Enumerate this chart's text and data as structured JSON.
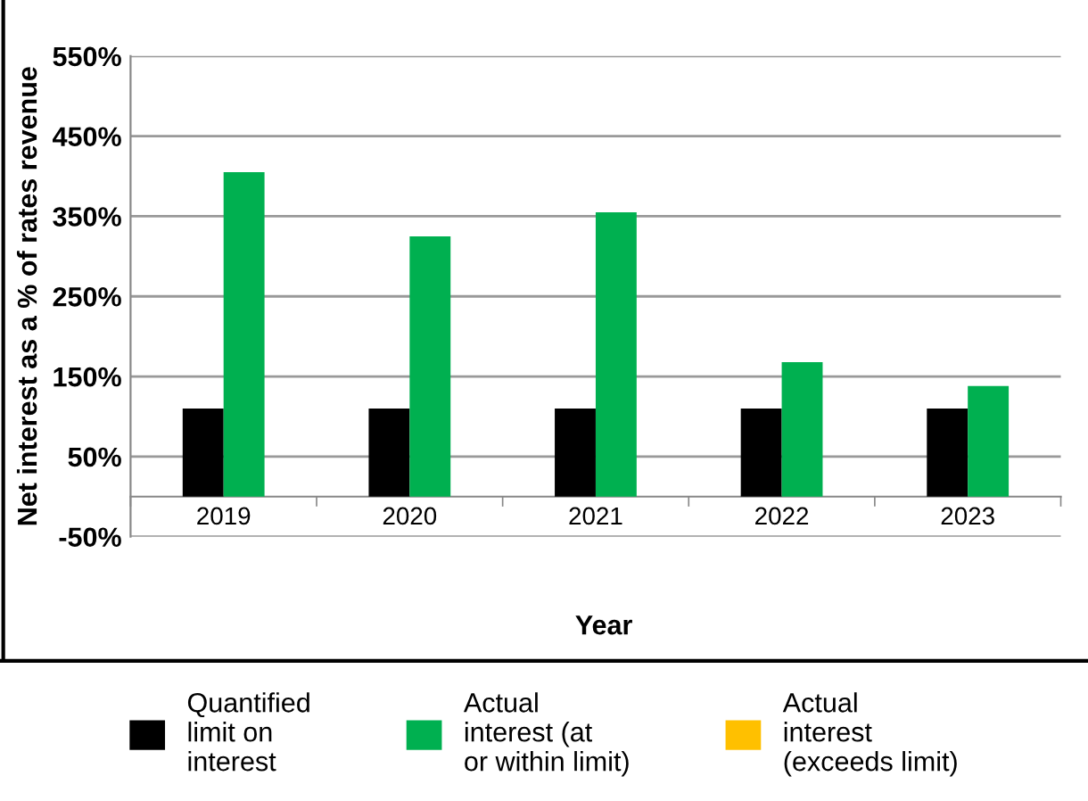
{
  "chart_data": {
    "type": "bar",
    "xlabel": "Year",
    "ylabel": "Net interest as a % of rates revenue",
    "categories": [
      "2019",
      "2020",
      "2021",
      "2022",
      "2023"
    ],
    "series": [
      {
        "name": "Quantified\nlimit on\ninterest",
        "color": "#000000",
        "values": [
          110,
          110,
          110,
          110,
          110
        ]
      },
      {
        "name": "Actual\ninterest (at\nor within limit)",
        "color": "#00b050",
        "values": [
          405,
          325,
          355,
          168,
          138
        ]
      },
      {
        "name": "Actual\ninterest\n(exceeds limit)",
        "color": "#ffc000",
        "values": [
          null,
          null,
          null,
          null,
          null
        ]
      }
    ],
    "ylim": [
      -50,
      550
    ],
    "yticks": [
      {
        "value": -50,
        "label": "-50%"
      },
      {
        "value": 50,
        "label": "50%"
      },
      {
        "value": 150,
        "label": "150%"
      },
      {
        "value": 250,
        "label": "250%"
      },
      {
        "value": 350,
        "label": "350%"
      },
      {
        "value": 450,
        "label": "450%"
      },
      {
        "value": 550,
        "label": "550%"
      }
    ],
    "grid": "y",
    "legend": "bottom"
  }
}
